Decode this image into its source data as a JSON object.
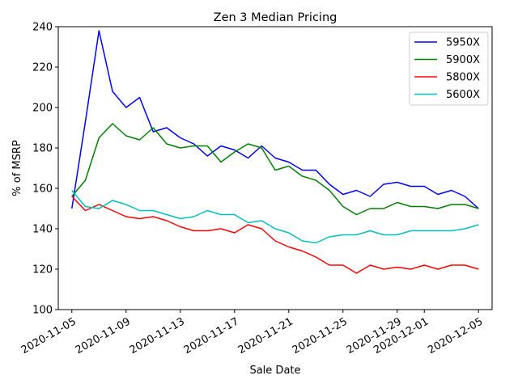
{
  "chart_data": {
    "type": "line",
    "title": "Zen 3 Median Pricing",
    "xlabel": "Sale Date",
    "ylabel": "% of MSRP",
    "ylim": [
      100,
      240
    ],
    "xlim": [
      "2020-11-04",
      "2020-12-06"
    ],
    "y_ticks": [
      100,
      120,
      140,
      160,
      180,
      200,
      220,
      240
    ],
    "x_ticks": [
      "2020-11-05",
      "2020-11-09",
      "2020-11-13",
      "2020-11-17",
      "2020-11-21",
      "2020-11-25",
      "2020-11-29",
      "2020-12-01",
      "2020-12-05"
    ],
    "grid": false,
    "legend_position": "top-right",
    "x": [
      "2020-11-05",
      "2020-11-06",
      "2020-11-07",
      "2020-11-08",
      "2020-11-09",
      "2020-11-10",
      "2020-11-11",
      "2020-11-12",
      "2020-11-13",
      "2020-11-14",
      "2020-11-15",
      "2020-11-16",
      "2020-11-17",
      "2020-11-18",
      "2020-11-19",
      "2020-11-20",
      "2020-11-21",
      "2020-11-22",
      "2020-11-23",
      "2020-11-24",
      "2020-11-25",
      "2020-11-26",
      "2020-11-27",
      "2020-11-28",
      "2020-11-29",
      "2020-11-30",
      "2020-12-01",
      "2020-12-02",
      "2020-12-03",
      "2020-12-04",
      "2020-12-05"
    ],
    "series": [
      {
        "name": "5950X",
        "color": "#0000ff",
        "values": [
          150,
          193,
          238,
          208,
          200,
          205,
          188,
          190,
          185,
          182,
          176,
          181,
          179,
          175,
          181,
          175,
          173,
          169,
          169,
          162,
          157,
          159,
          156,
          162,
          163,
          161,
          161,
          157,
          159,
          156,
          150
        ]
      },
      {
        "name": "5900X",
        "color": "#008000",
        "values": [
          156,
          164,
          185,
          192,
          186,
          184,
          190,
          182,
          180,
          181,
          181,
          173,
          178,
          182,
          180,
          169,
          171,
          166,
          164,
          159,
          151,
          147,
          150,
          150,
          153,
          151,
          151,
          150,
          152,
          152,
          150
        ]
      },
      {
        "name": "5800X",
        "color": "#ff0000",
        "values": [
          156,
          149,
          152,
          149,
          146,
          145,
          146,
          144,
          141,
          139,
          139,
          140,
          138,
          142,
          140,
          134,
          131,
          129,
          126,
          122,
          122,
          118,
          122,
          120,
          121,
          120,
          122,
          120,
          122,
          122,
          120
        ]
      },
      {
        "name": "5600X",
        "color": "#00bfbf",
        "values": [
          159,
          151,
          150,
          154,
          152,
          149,
          149,
          147,
          145,
          146,
          149,
          147,
          147,
          143,
          144,
          140,
          138,
          134,
          133,
          136,
          137,
          137,
          139,
          137,
          137,
          139,
          139,
          139,
          139,
          140,
          142
        ]
      }
    ]
  }
}
